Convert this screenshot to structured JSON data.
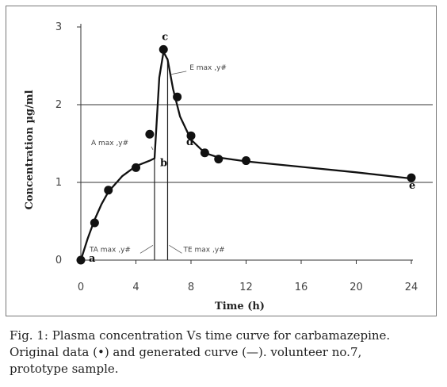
{
  "chart_data": {
    "type": "scatter",
    "title": "",
    "xlabel": "Time (h)",
    "ylabel": "Concentration µg/ml",
    "xlim": [
      0,
      24
    ],
    "ylim": [
      0,
      3
    ],
    "xticks": [
      "0",
      "4",
      "8",
      "12",
      "16",
      "20",
      "24"
    ],
    "yticks": [
      "0",
      "1",
      "2",
      "3"
    ],
    "gridlines_y": [
      1,
      2
    ],
    "series": [
      {
        "name": "Original data (•)",
        "style": "points",
        "x": [
          0,
          1,
          2,
          4,
          5,
          6,
          7,
          8,
          9,
          10,
          12,
          24
        ],
        "y": [
          0.0,
          0.48,
          0.9,
          1.19,
          1.62,
          2.71,
          2.1,
          1.6,
          1.38,
          1.3,
          1.28,
          1.06
        ]
      },
      {
        "name": "generated curve (—)",
        "style": "line",
        "x": [
          0,
          0.5,
          1,
          1.5,
          2,
          3,
          4,
          5,
          5.35,
          5.7,
          6,
          6.3,
          6.7,
          7.2,
          8,
          9,
          10,
          12,
          16,
          20,
          24
        ],
        "y": [
          0.0,
          0.28,
          0.52,
          0.72,
          0.88,
          1.08,
          1.21,
          1.28,
          1.31,
          2.35,
          2.68,
          2.58,
          2.2,
          1.85,
          1.55,
          1.38,
          1.32,
          1.27,
          1.2,
          1.13,
          1.05
        ]
      }
    ],
    "point_labels": [
      {
        "text": "a",
        "x": 0,
        "y": 0
      },
      {
        "text": "b",
        "x": 5.35,
        "y": 1.31
      },
      {
        "text": "c",
        "x": 6,
        "y": 2.71
      },
      {
        "text": "d",
        "x": 8,
        "y": 1.6
      },
      {
        "text": "e",
        "x": 24,
        "y": 1.06
      }
    ],
    "vertical_markers": [
      5.35,
      6.3
    ],
    "annotations": [
      {
        "text": "A max ,y#",
        "x": 5.35,
        "y": 1.42
      },
      {
        "text": "E max ,y#",
        "x": 6.4,
        "y": 2.45
      },
      {
        "text": "TA max ,y#",
        "x": 5.35,
        "y": 0.15
      },
      {
        "text": "TE max ,y#",
        "x": 6.3,
        "y": 0.15
      }
    ]
  },
  "caption": {
    "line1": "Fig. 1: Plasma concentration Vs time curve for carbamazepine.",
    "line2": "Original data (•) and generated curve (—). volunteer no.7,",
    "line3": "prototype sample."
  }
}
